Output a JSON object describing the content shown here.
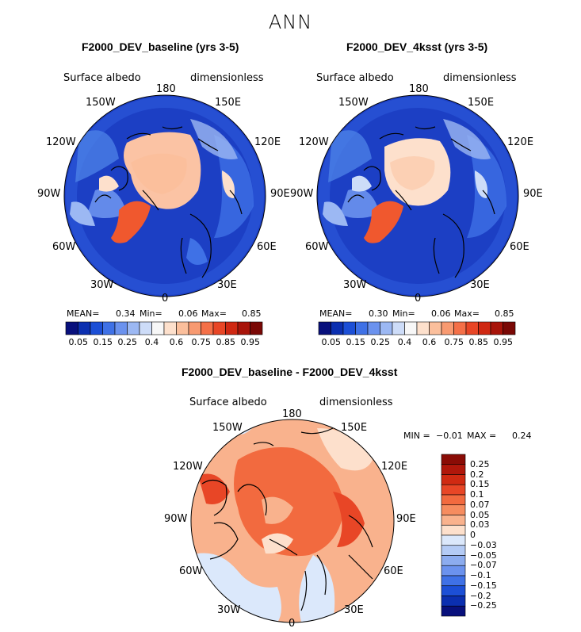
{
  "figure": {
    "season_title": "ANN",
    "panels": [
      {
        "title": "F2000_DEV_baseline (yrs 3-5)",
        "variable": "Surface albedo",
        "units": "dimensionless",
        "stats": {
          "mean_label": "MEAN=",
          "mean_value": "0.34",
          "min_label": "Min=",
          "min_value": "0.06",
          "max_label": "Max=",
          "max_value": "0.85"
        }
      },
      {
        "title": "F2000_DEV_4ksst (yrs 3-5)",
        "variable": "Surface albedo",
        "units": "dimensionless",
        "stats": {
          "mean_label": "MEAN=",
          "mean_value": "0.30",
          "min_label": "Min=",
          "min_value": "0.06",
          "max_label": "Max=",
          "max_value": "0.85"
        }
      },
      {
        "title": "F2000_DEV_baseline - F2000_DEV_4ksst",
        "variable": "Surface albedo",
        "units": "dimensionless",
        "stats": {
          "min_label": "MIN =",
          "min_value": "−0.01",
          "max_label": "MAX =",
          "max_value": "0.24"
        }
      }
    ],
    "longitude_labels": {
      "top": "180",
      "upper_left": "150W",
      "upper_right": "150E",
      "left_upper": "120W",
      "right_upper": "120E",
      "left": "90W",
      "right": "90E",
      "left_lower": "60W",
      "right_lower": "60E",
      "lower_left": "30W",
      "lower_right": "30E",
      "bottom": "0"
    },
    "abs_colorbar": {
      "labels": [
        "0.05",
        "0.15",
        "0.25",
        "0.4",
        "0.6",
        "0.75",
        "0.85",
        "0.95"
      ],
      "colors": [
        "#08107c",
        "#0b2fb0",
        "#1c4fd6",
        "#3f71e6",
        "#6b92ee",
        "#9cb8f3",
        "#cddcf8",
        "#f7f7f7",
        "#fde0cc",
        "#fbbf9c",
        "#f89a71",
        "#f47048",
        "#e84626",
        "#cf2812",
        "#a8140a",
        "#7a0805"
      ]
    },
    "diff_colorbar": {
      "labels": [
        "0.25",
        "0.2",
        "0.15",
        "0.1",
        "0.07",
        "0.05",
        "0.03",
        "0",
        "−0.03",
        "−0.05",
        "−0.07",
        "−0.1",
        "−0.15",
        "−0.2",
        "−0.25"
      ],
      "colors": [
        "#8a0c06",
        "#b0170b",
        "#d02a12",
        "#e84626",
        "#f26a3f",
        "#f68c5f",
        "#f9b28d",
        "#fde0cc",
        "#dbe8fb",
        "#b4cbf5",
        "#8cacef",
        "#6b92ee",
        "#3f71e6",
        "#1c4fd6",
        "#0b2fb0",
        "#08107c"
      ]
    },
    "colors": {
      "ocean_deep": "#1c3fc4",
      "ocean_ice": "#fbc3a4",
      "greenland": "#f0582e",
      "diff_base": "#f7aa86",
      "diff_strong": "#ea5a2c",
      "diff_neg": "#d7e6f8"
    }
  }
}
